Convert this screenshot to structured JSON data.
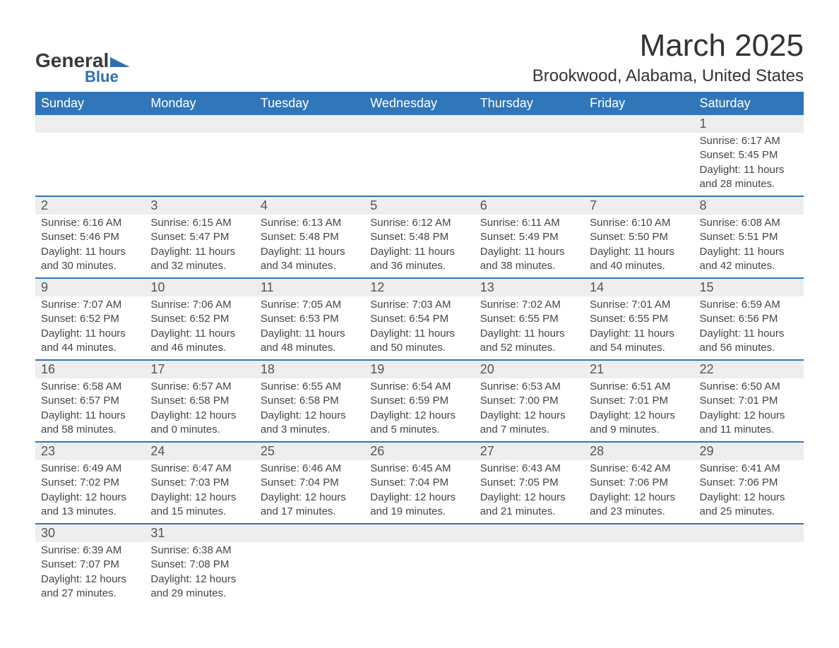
{
  "logo": {
    "text1": "General",
    "text2": "Blue",
    "flag_color": "#2f6fae"
  },
  "title": "March 2025",
  "location": "Brookwood, Alabama, United States",
  "colors": {
    "header_bg": "#3176b8",
    "header_text": "#ffffff",
    "daynum_bg": "#eeeeee",
    "border": "#3176b8",
    "body_text": "#444444"
  },
  "typography": {
    "title_fontsize": 44,
    "location_fontsize": 24,
    "header_fontsize": 18,
    "daynum_fontsize": 18,
    "info_fontsize": 15
  },
  "weekdays": [
    "Sunday",
    "Monday",
    "Tuesday",
    "Wednesday",
    "Thursday",
    "Friday",
    "Saturday"
  ],
  "labels": {
    "sunrise": "Sunrise:",
    "sunset": "Sunset:",
    "daylight": "Daylight:"
  },
  "weeks": [
    [
      null,
      null,
      null,
      null,
      null,
      null,
      {
        "day": "1",
        "sunrise": "6:17 AM",
        "sunset": "5:45 PM",
        "daylight": "11 hours and 28 minutes."
      }
    ],
    [
      {
        "day": "2",
        "sunrise": "6:16 AM",
        "sunset": "5:46 PM",
        "daylight": "11 hours and 30 minutes."
      },
      {
        "day": "3",
        "sunrise": "6:15 AM",
        "sunset": "5:47 PM",
        "daylight": "11 hours and 32 minutes."
      },
      {
        "day": "4",
        "sunrise": "6:13 AM",
        "sunset": "5:48 PM",
        "daylight": "11 hours and 34 minutes."
      },
      {
        "day": "5",
        "sunrise": "6:12 AM",
        "sunset": "5:48 PM",
        "daylight": "11 hours and 36 minutes."
      },
      {
        "day": "6",
        "sunrise": "6:11 AM",
        "sunset": "5:49 PM",
        "daylight": "11 hours and 38 minutes."
      },
      {
        "day": "7",
        "sunrise": "6:10 AM",
        "sunset": "5:50 PM",
        "daylight": "11 hours and 40 minutes."
      },
      {
        "day": "8",
        "sunrise": "6:08 AM",
        "sunset": "5:51 PM",
        "daylight": "11 hours and 42 minutes."
      }
    ],
    [
      {
        "day": "9",
        "sunrise": "7:07 AM",
        "sunset": "6:52 PM",
        "daylight": "11 hours and 44 minutes."
      },
      {
        "day": "10",
        "sunrise": "7:06 AM",
        "sunset": "6:52 PM",
        "daylight": "11 hours and 46 minutes."
      },
      {
        "day": "11",
        "sunrise": "7:05 AM",
        "sunset": "6:53 PM",
        "daylight": "11 hours and 48 minutes."
      },
      {
        "day": "12",
        "sunrise": "7:03 AM",
        "sunset": "6:54 PM",
        "daylight": "11 hours and 50 minutes."
      },
      {
        "day": "13",
        "sunrise": "7:02 AM",
        "sunset": "6:55 PM",
        "daylight": "11 hours and 52 minutes."
      },
      {
        "day": "14",
        "sunrise": "7:01 AM",
        "sunset": "6:55 PM",
        "daylight": "11 hours and 54 minutes."
      },
      {
        "day": "15",
        "sunrise": "6:59 AM",
        "sunset": "6:56 PM",
        "daylight": "11 hours and 56 minutes."
      }
    ],
    [
      {
        "day": "16",
        "sunrise": "6:58 AM",
        "sunset": "6:57 PM",
        "daylight": "11 hours and 58 minutes."
      },
      {
        "day": "17",
        "sunrise": "6:57 AM",
        "sunset": "6:58 PM",
        "daylight": "12 hours and 0 minutes."
      },
      {
        "day": "18",
        "sunrise": "6:55 AM",
        "sunset": "6:58 PM",
        "daylight": "12 hours and 3 minutes."
      },
      {
        "day": "19",
        "sunrise": "6:54 AM",
        "sunset": "6:59 PM",
        "daylight": "12 hours and 5 minutes."
      },
      {
        "day": "20",
        "sunrise": "6:53 AM",
        "sunset": "7:00 PM",
        "daylight": "12 hours and 7 minutes."
      },
      {
        "day": "21",
        "sunrise": "6:51 AM",
        "sunset": "7:01 PM",
        "daylight": "12 hours and 9 minutes."
      },
      {
        "day": "22",
        "sunrise": "6:50 AM",
        "sunset": "7:01 PM",
        "daylight": "12 hours and 11 minutes."
      }
    ],
    [
      {
        "day": "23",
        "sunrise": "6:49 AM",
        "sunset": "7:02 PM",
        "daylight": "12 hours and 13 minutes."
      },
      {
        "day": "24",
        "sunrise": "6:47 AM",
        "sunset": "7:03 PM",
        "daylight": "12 hours and 15 minutes."
      },
      {
        "day": "25",
        "sunrise": "6:46 AM",
        "sunset": "7:04 PM",
        "daylight": "12 hours and 17 minutes."
      },
      {
        "day": "26",
        "sunrise": "6:45 AM",
        "sunset": "7:04 PM",
        "daylight": "12 hours and 19 minutes."
      },
      {
        "day": "27",
        "sunrise": "6:43 AM",
        "sunset": "7:05 PM",
        "daylight": "12 hours and 21 minutes."
      },
      {
        "day": "28",
        "sunrise": "6:42 AM",
        "sunset": "7:06 PM",
        "daylight": "12 hours and 23 minutes."
      },
      {
        "day": "29",
        "sunrise": "6:41 AM",
        "sunset": "7:06 PM",
        "daylight": "12 hours and 25 minutes."
      }
    ],
    [
      {
        "day": "30",
        "sunrise": "6:39 AM",
        "sunset": "7:07 PM",
        "daylight": "12 hours and 27 minutes."
      },
      {
        "day": "31",
        "sunrise": "6:38 AM",
        "sunset": "7:08 PM",
        "daylight": "12 hours and 29 minutes."
      },
      null,
      null,
      null,
      null,
      null
    ]
  ]
}
